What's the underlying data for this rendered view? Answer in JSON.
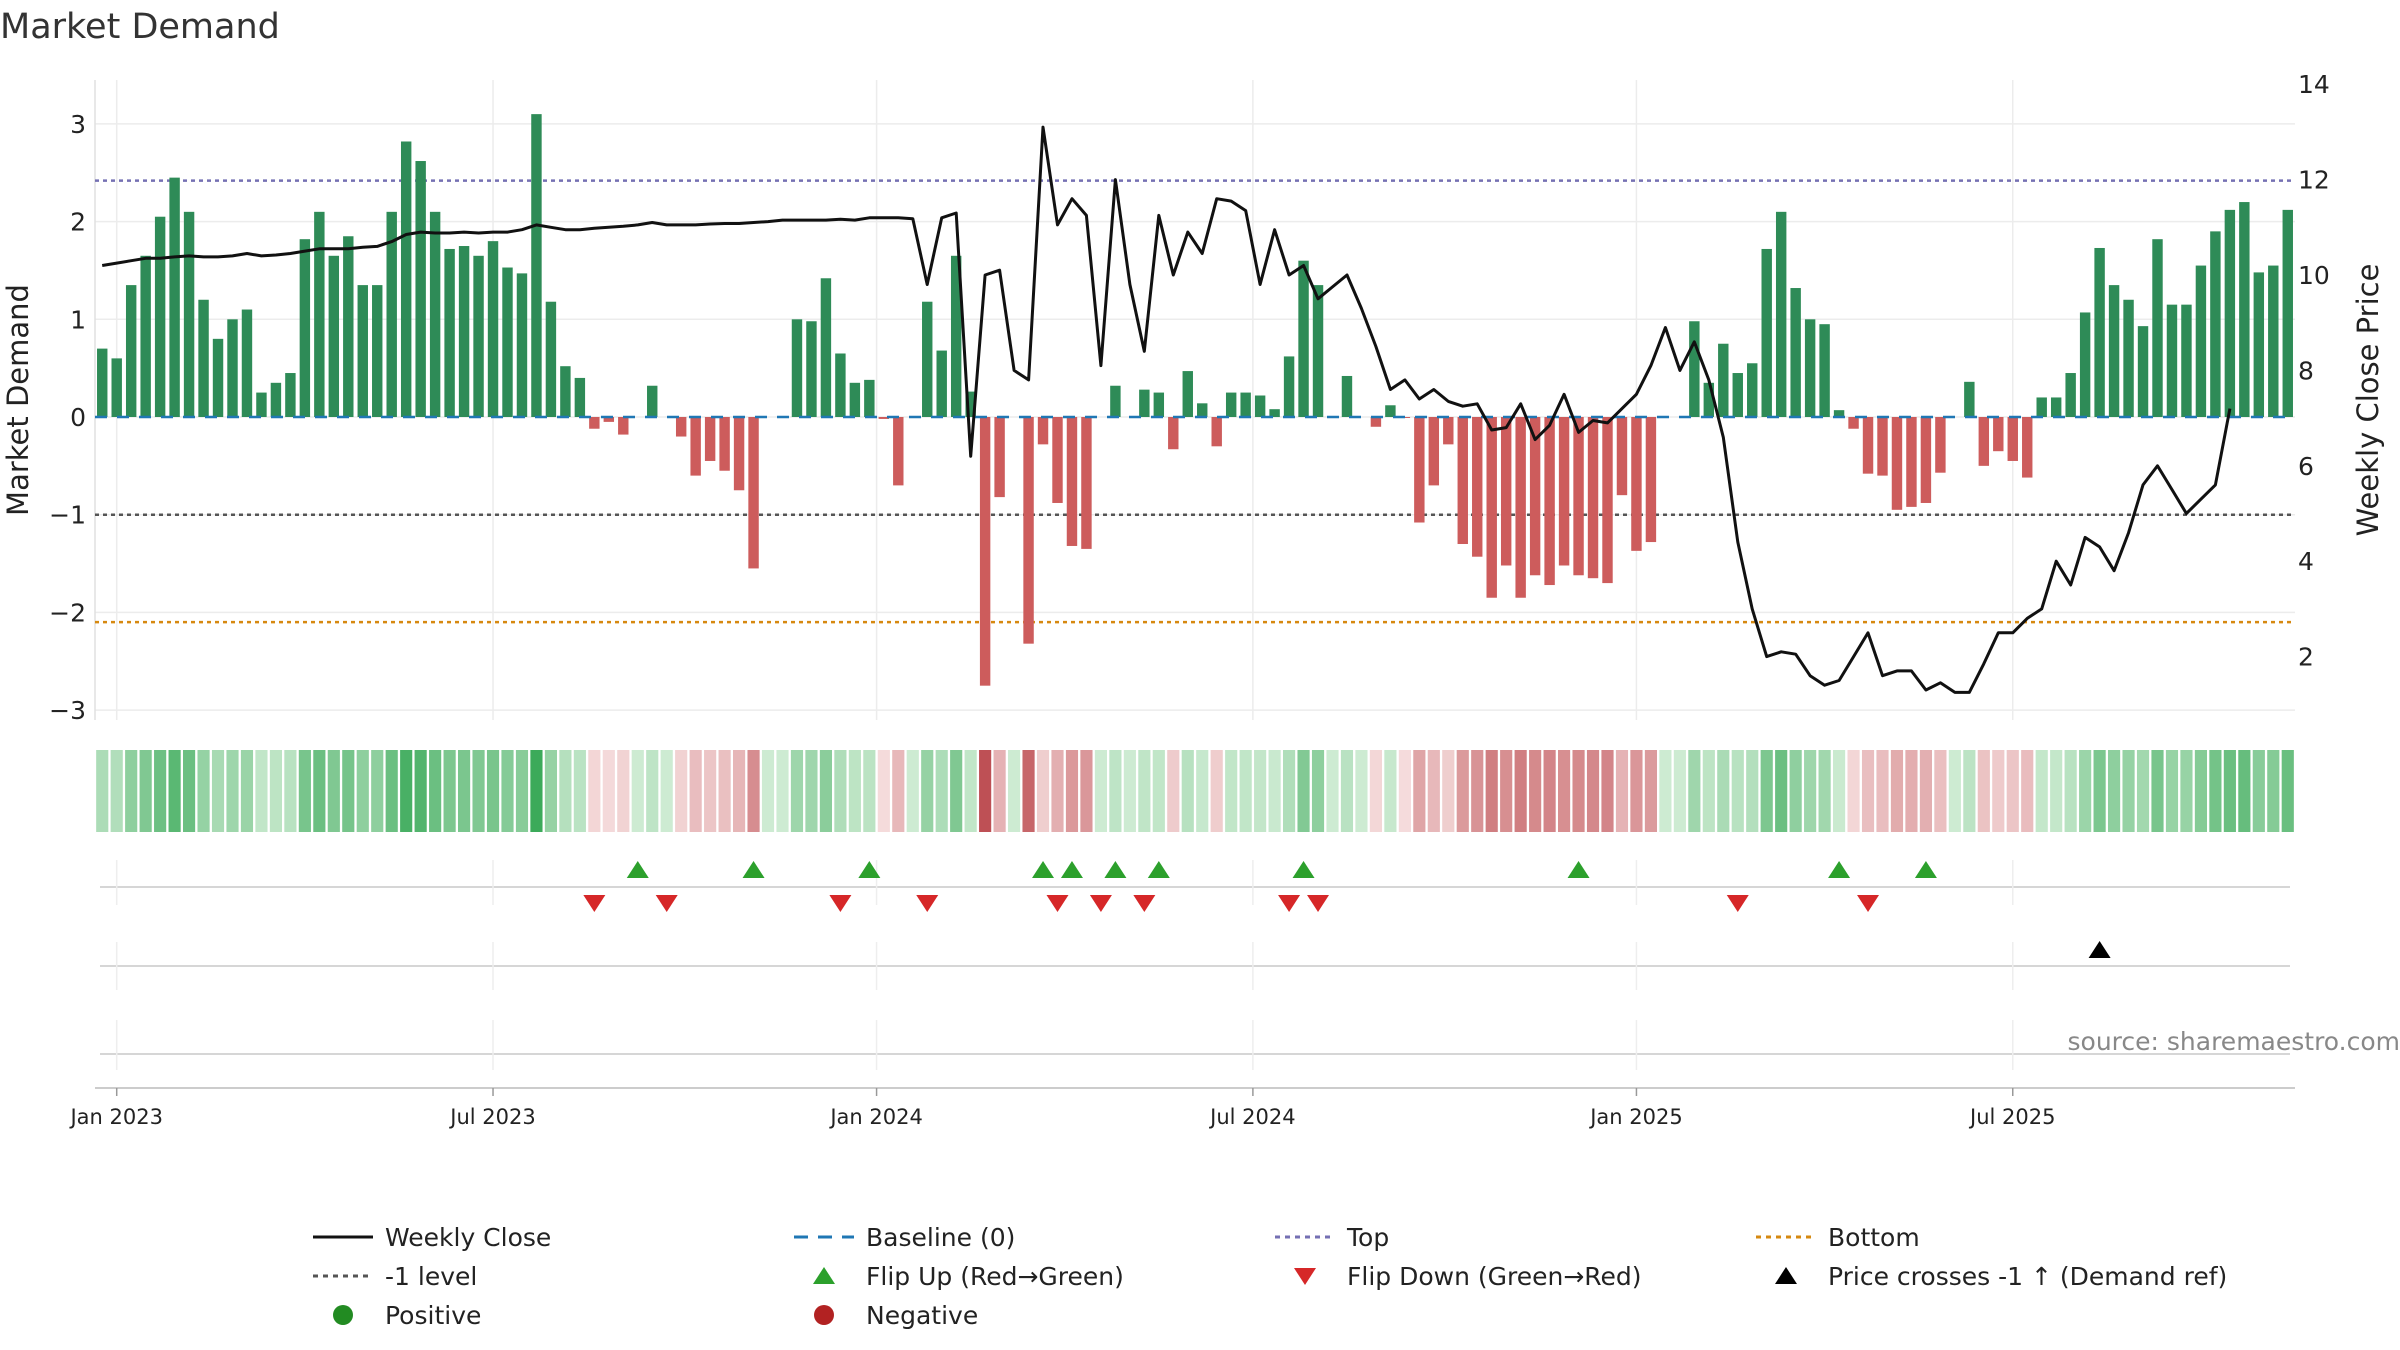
{
  "chart_data": {
    "type": "bar",
    "title": "Market Demand",
    "source": "source: sharemaestro.com",
    "ylabel_left": "Market Demand",
    "ylabel_right": "Weekly Close Price",
    "ylim_left": [
      -3.3,
      3.5
    ],
    "ylim_right": [
      0,
      14
    ],
    "yticks_left": [
      3,
      2,
      1,
      0,
      -1,
      -2,
      -3
    ],
    "yticks_left_labels": [
      "3",
      "2",
      "1",
      "0",
      "−1",
      "−2",
      "−3"
    ],
    "yticks_right": [
      14,
      12,
      10,
      8,
      6,
      4,
      2
    ],
    "yticks_right_labels": [
      "14",
      "12",
      "10",
      "8",
      "6",
      "4",
      "2"
    ],
    "x_ticks": [
      {
        "label": "Jan 2023",
        "week": 1.5
      },
      {
        "label": "Jul 2023",
        "week": 27.5
      },
      {
        "label": "Jan 2024",
        "week": 54
      },
      {
        "label": "Jul 2024",
        "week": 80
      },
      {
        "label": "Jan 2025",
        "week": 106.5
      },
      {
        "label": "Jul 2025",
        "week": 132.5
      }
    ],
    "reference_lines": {
      "top": 2.42,
      "minus_one": -1.0,
      "bottom": -2.1
    },
    "colors": {
      "positive": "#2e8b57",
      "negative": "#cd5c5c",
      "weekly_close": "#111111",
      "baseline": "#1f77b4",
      "top": "#7570b3",
      "minus_one": "#555555",
      "bottom": "#d68910",
      "flip_up": "#2ca02c",
      "flip_down": "#d62728",
      "cross": "#000000",
      "positive_dot": "#228b22",
      "negative_dot": "#b22222"
    },
    "series": [
      {
        "name": "Market Demand",
        "type": "bar",
        "values": [
          0.7,
          0.6,
          1.35,
          1.65,
          2.05,
          2.45,
          2.1,
          1.2,
          0.8,
          1.0,
          1.1,
          0.25,
          0.35,
          0.45,
          1.82,
          2.1,
          1.65,
          1.85,
          1.35,
          1.35,
          2.1,
          2.82,
          2.62,
          2.1,
          1.72,
          1.75,
          1.65,
          1.8,
          1.53,
          1.47,
          3.1,
          1.18,
          0.52,
          0.4,
          -0.12,
          -0.05,
          -0.18,
          0.0,
          0.32,
          0.0,
          -0.2,
          -0.6,
          -0.45,
          -0.55,
          -0.75,
          -1.55,
          0.0,
          0.0,
          1.0,
          0.98,
          1.42,
          0.65,
          0.35,
          0.38,
          -0.02,
          -0.7,
          0.0,
          1.18,
          0.68,
          1.65,
          0.26,
          -2.75,
          -0.82,
          0.0,
          -2.32,
          -0.28,
          -0.88,
          -1.32,
          -1.35,
          0.0,
          0.32,
          0.0,
          0.28,
          0.25,
          -0.33,
          0.47,
          0.14,
          -0.3,
          0.25,
          0.25,
          0.22,
          0.08,
          0.62,
          1.6,
          1.35,
          0.0,
          0.42,
          0.0,
          -0.1,
          0.12,
          -0.01,
          -1.08,
          -0.7,
          -0.28,
          -1.3,
          -1.43,
          -1.85,
          -1.52,
          -1.85,
          -1.62,
          -1.72,
          -1.52,
          -1.62,
          -1.65,
          -1.7,
          -0.8,
          -1.37,
          -1.28,
          0.0,
          0.0,
          0.98,
          0.35,
          0.75,
          0.45,
          0.55,
          1.72,
          2.1,
          1.32,
          1.0,
          0.95,
          0.07,
          -0.12,
          -0.58,
          -0.6,
          -0.95,
          -0.92,
          -0.88,
          -0.57,
          0.0,
          0.36,
          -0.5,
          -0.35,
          -0.45,
          -0.62,
          0.2,
          0.2,
          0.45,
          1.07,
          1.73,
          1.35,
          1.2,
          0.93,
          1.82,
          1.15,
          1.15,
          1.55,
          1.9,
          2.12,
          2.2,
          1.48,
          1.55,
          2.12
        ]
      },
      {
        "name": "Weekly Close",
        "type": "line",
        "axis": "right",
        "values": [
          10.2,
          10.25,
          10.3,
          10.35,
          10.35,
          10.38,
          10.4,
          10.38,
          10.38,
          10.4,
          10.45,
          10.4,
          10.42,
          10.45,
          10.5,
          10.55,
          10.55,
          10.55,
          10.58,
          10.6,
          10.7,
          10.85,
          10.9,
          10.88,
          10.88,
          10.9,
          10.88,
          10.9,
          10.9,
          10.95,
          11.05,
          11.0,
          10.95,
          10.95,
          10.98,
          11.0,
          11.02,
          11.05,
          11.1,
          11.05,
          11.05,
          11.05,
          11.07,
          11.08,
          11.08,
          11.1,
          11.12,
          11.15,
          11.15,
          11.15,
          11.15,
          11.17,
          11.15,
          11.2,
          11.2,
          11.2,
          11.18,
          9.8,
          11.2,
          11.3,
          6.2,
          10.0,
          10.1,
          8.0,
          7.8,
          13.1,
          11.05,
          11.6,
          11.25,
          8.1,
          12.0,
          9.8,
          8.4,
          11.25,
          10.0,
          10.9,
          10.45,
          11.6,
          11.55,
          11.35,
          9.8,
          10.95,
          10.0,
          10.2,
          9.5,
          9.75,
          10.0,
          9.3,
          8.5,
          7.6,
          7.8,
          7.4,
          7.6,
          7.35,
          7.25,
          7.3,
          6.75,
          6.8,
          7.3,
          6.55,
          6.85,
          7.5,
          6.7,
          6.95,
          6.9,
          7.2,
          7.5,
          8.1,
          8.9,
          8.0,
          8.6,
          7.8,
          6.6,
          4.4,
          3.0,
          2.0,
          2.1,
          2.05,
          1.6,
          1.4,
          1.5,
          2.0,
          2.5,
          1.6,
          1.7,
          1.7,
          1.3,
          1.45,
          1.25,
          1.25,
          1.85,
          2.5,
          2.5,
          2.8,
          3.0,
          4.0,
          3.5,
          4.5,
          4.3,
          3.8,
          4.6,
          5.6,
          6.0,
          5.5,
          5.0,
          5.3,
          5.6,
          7.2
        ]
      }
    ],
    "heat_strip": {
      "description": "per-week demand intensity; positive = green shades, negative = red shades",
      "source_series": "Market Demand"
    },
    "flip_up_markers": [
      37,
      45,
      53,
      65,
      67,
      70,
      73,
      83,
      102,
      120,
      126
    ],
    "flip_down_markers": [
      34,
      39,
      51,
      57,
      66,
      69,
      72,
      82,
      84,
      113,
      122
    ],
    "price_cross_markers": [
      138
    ],
    "legend": [
      {
        "label": "Weekly Close",
        "kind": "line-solid",
        "color": "#111111"
      },
      {
        "label": "Baseline (0)",
        "kind": "line-dashed",
        "color": "#1f77b4"
      },
      {
        "label": "Top",
        "kind": "line-dotted",
        "color": "#7570b3"
      },
      {
        "label": "Bottom",
        "kind": "line-dotted",
        "color": "#d68910"
      },
      {
        "label": "-1 level",
        "kind": "line-dotted",
        "color": "#555555"
      },
      {
        "label": "Flip Up (Red→Green)",
        "kind": "triangle-up",
        "color": "#2ca02c"
      },
      {
        "label": "Flip Down (Green→Red)",
        "kind": "triangle-down",
        "color": "#d62728"
      },
      {
        "label": "Price crosses -1 ↑ (Demand ref)",
        "kind": "triangle-up",
        "color": "#000000"
      },
      {
        "label": "Positive",
        "kind": "dot",
        "color": "#228b22"
      },
      {
        "label": "Negative",
        "kind": "dot",
        "color": "#b22222"
      }
    ]
  }
}
